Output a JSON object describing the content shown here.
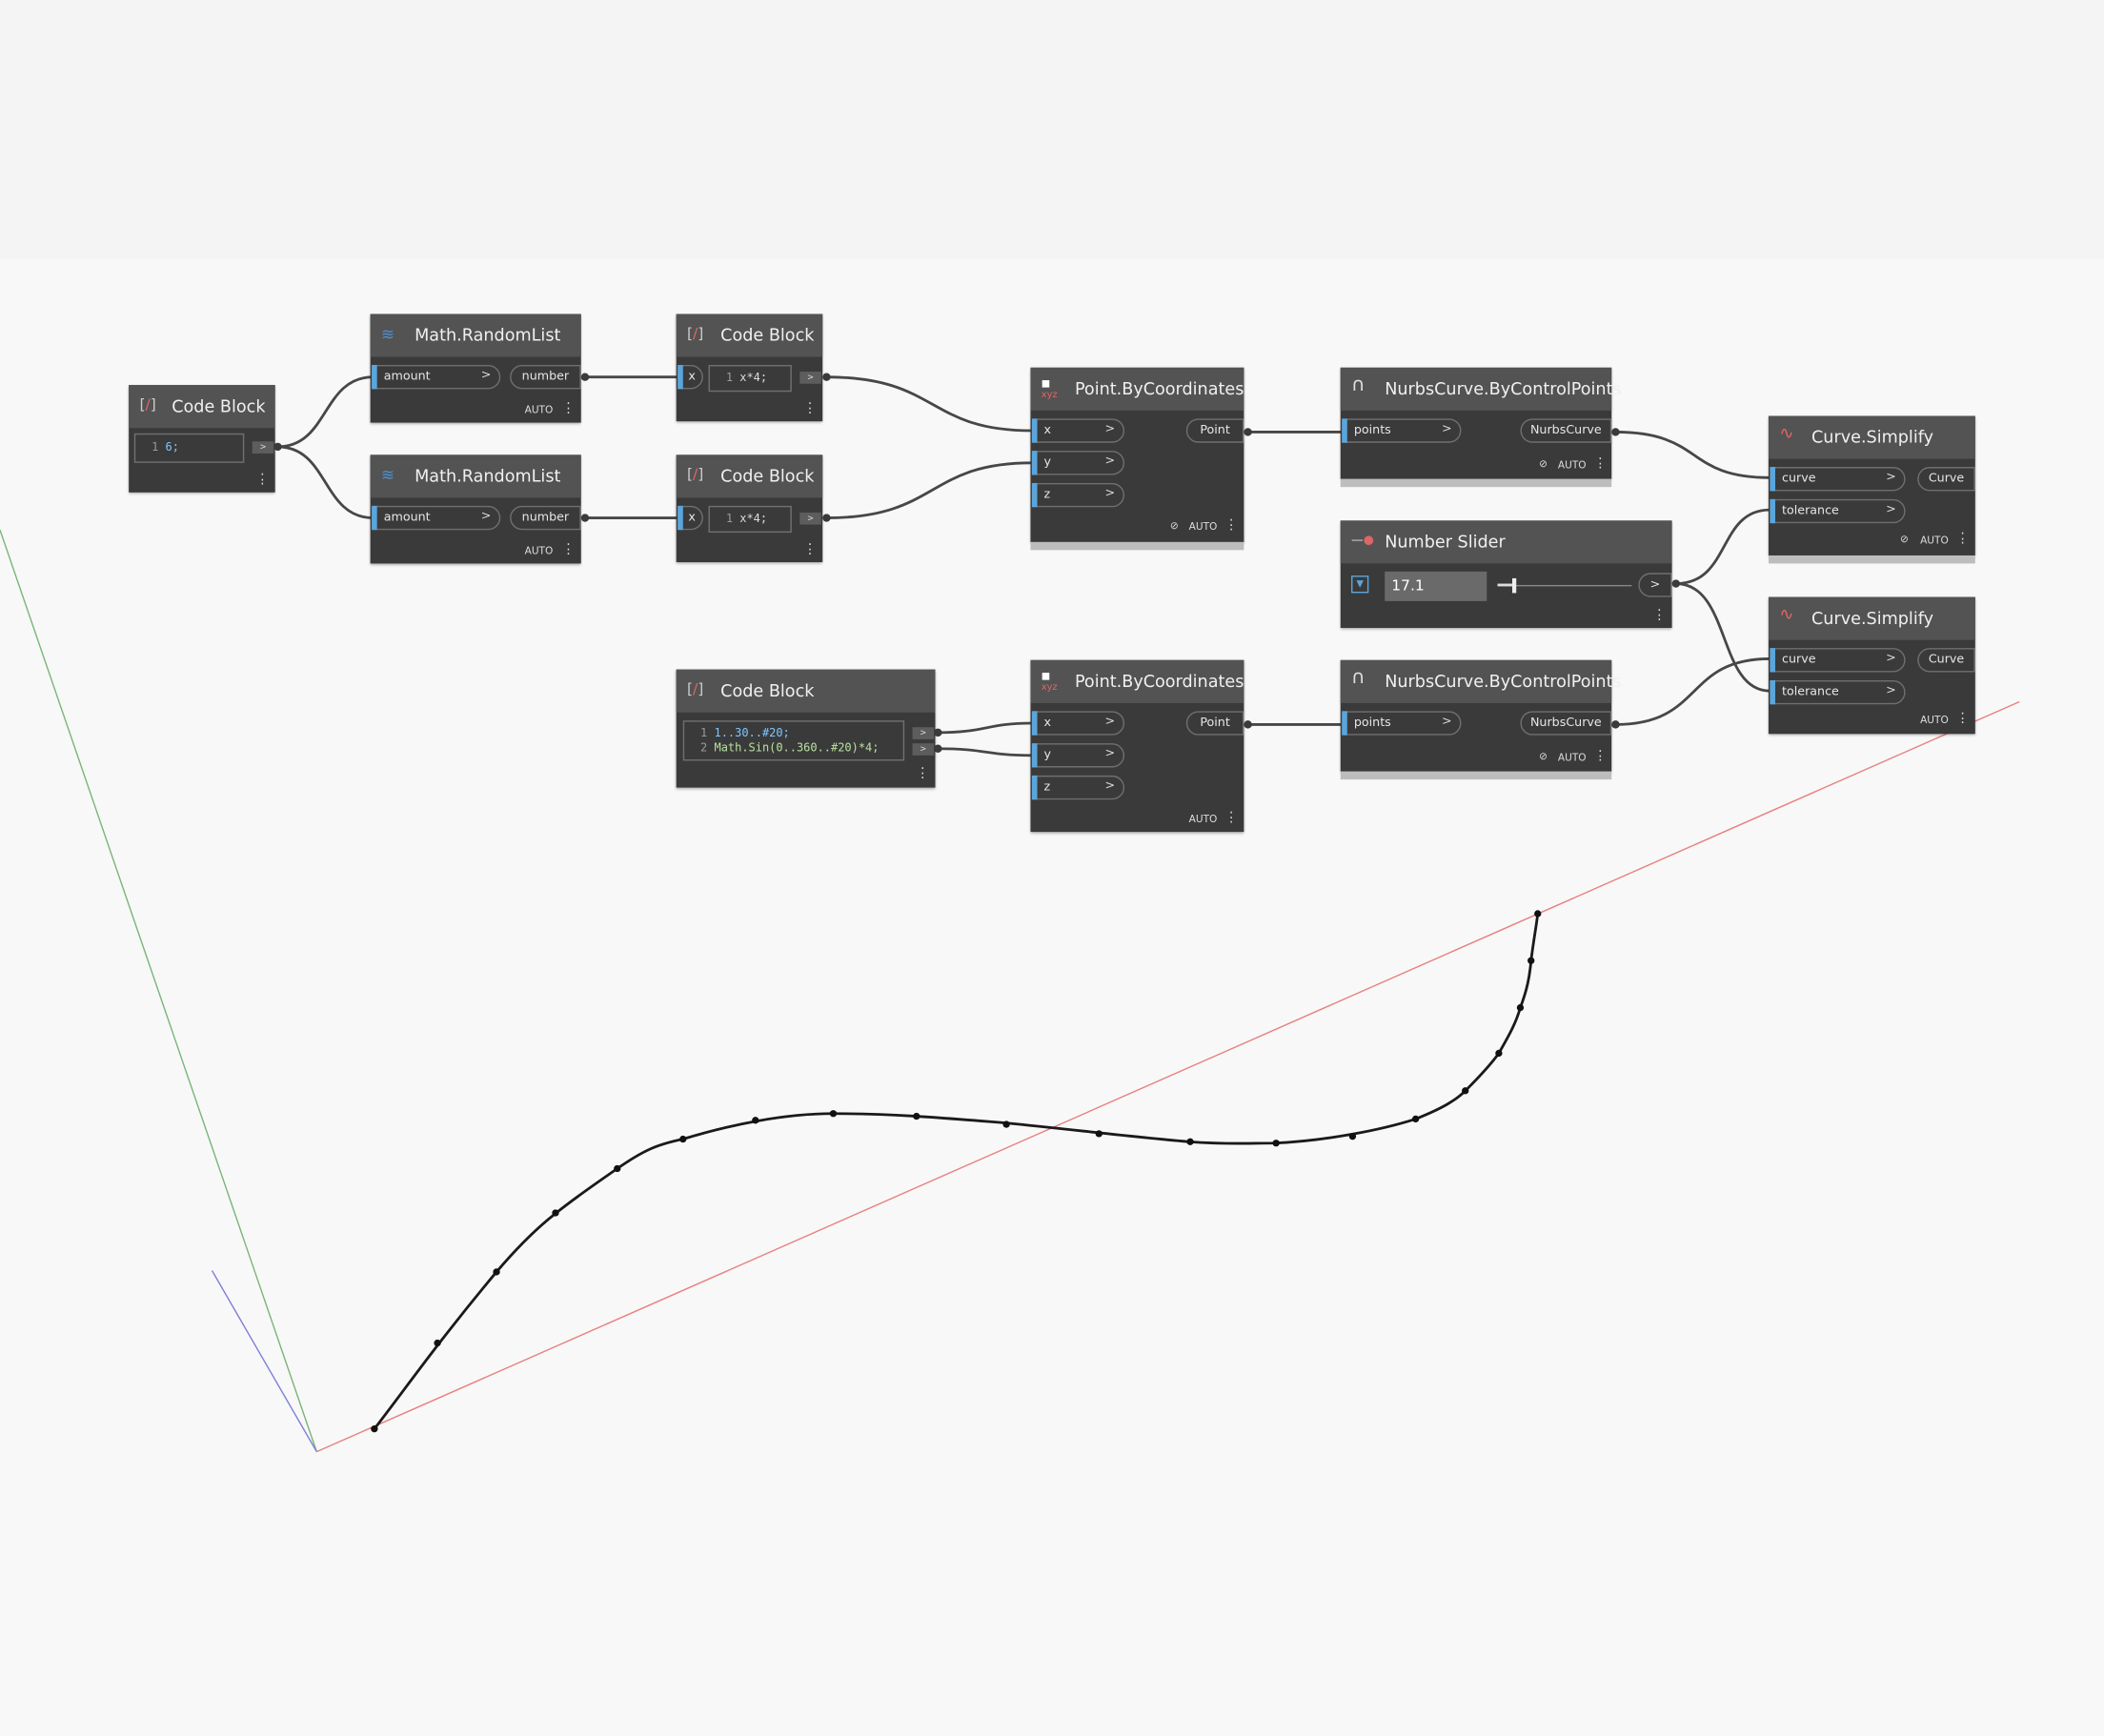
{
  "nodes": {
    "code_block_1": {
      "title": "Code Block",
      "line_no": "1",
      "code": "6;"
    },
    "random_list_1": {
      "title": "Math.RandomList",
      "input": "amount",
      "output": "number",
      "mode": "AUTO"
    },
    "random_list_2": {
      "title": "Math.RandomList",
      "input": "amount",
      "output": "number",
      "mode": "AUTO"
    },
    "code_block_2": {
      "title": "Code Block",
      "input": "x",
      "line_no": "1",
      "code": "x*4;"
    },
    "code_block_3": {
      "title": "Code Block",
      "input": "x",
      "line_no": "1",
      "code": "x*4;"
    },
    "code_block_4": {
      "title": "Code Block",
      "line1_no": "1",
      "line1": "1..30..#20;",
      "line2_no": "2",
      "line2": "Math.Sin(0..360..#20)*4;"
    },
    "point_by_coords_1": {
      "title": "Point.ByCoordinates",
      "inputs": [
        "x",
        "y",
        "z"
      ],
      "output": "Point",
      "mode": "AUTO",
      "icon_text": "xyz"
    },
    "point_by_coords_2": {
      "title": "Point.ByCoordinates",
      "inputs": [
        "x",
        "y",
        "z"
      ],
      "output": "Point",
      "mode": "AUTO",
      "icon_text": "xyz"
    },
    "nurbs_1": {
      "title": "NurbsCurve.ByControlPoints",
      "input": "points",
      "output": "NurbsCurve",
      "mode": "AUTO"
    },
    "nurbs_2": {
      "title": "NurbsCurve.ByControlPoints",
      "input": "points",
      "output": "NurbsCurve",
      "mode": "AUTO"
    },
    "slider": {
      "title": "Number Slider",
      "value": "17.1",
      "output_arrow": ">",
      "level": 0.12
    },
    "simplify_1": {
      "title": "Curve.Simplify",
      "inputs": [
        "curve",
        "tolerance"
      ],
      "output": "Curve",
      "mode": "AUTO"
    },
    "simplify_2": {
      "title": "Curve.Simplify",
      "inputs": [
        "curve",
        "tolerance"
      ],
      "output": "Curve",
      "mode": "AUTO"
    }
  },
  "colors": {
    "canvas": "#f8f8f8",
    "node_body": "#3a3a3a",
    "node_header": "#535353",
    "port_accent": "#5aa6dc",
    "axis_x": "#e88080",
    "axis_y": "#7ab57a",
    "axis_z": "#8080d8",
    "curve": "#1a1a1a"
  }
}
